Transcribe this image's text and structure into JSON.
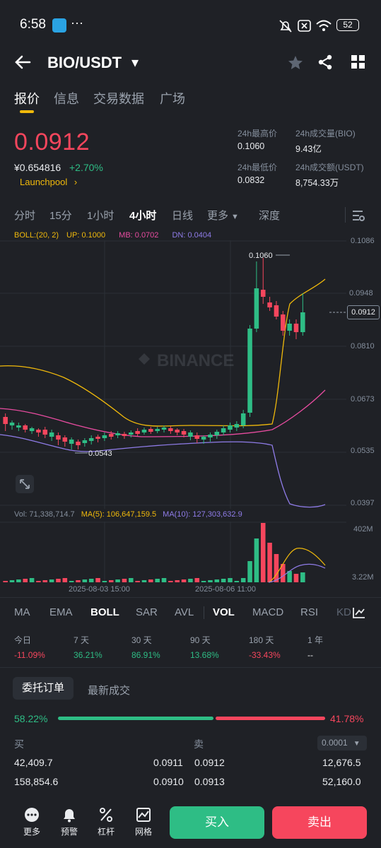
{
  "status_bar": {
    "time": "6:58",
    "dots": "···",
    "battery": "52"
  },
  "header": {
    "pair": "BIO/USDT",
    "caret": "▾"
  },
  "tabs": [
    "报价",
    "信息",
    "交易数据",
    "广场"
  ],
  "price": {
    "last": "0.0912",
    "cny": "¥0.654816",
    "change": "+2.70%",
    "launchpool": "Launchpool",
    "stats": {
      "high_label": "24h最高价",
      "high": "0.1060",
      "low_label": "24h最低价",
      "low": "0.0832",
      "vol_bio_label": "24h成交量(BIO)",
      "vol_bio": "9.43亿",
      "vol_usdt_label": "24h成交额(USDT)",
      "vol_usdt": "8,754.33万"
    }
  },
  "intervals": [
    "分时",
    "15分",
    "1小时",
    "4小时",
    "日线",
    "更多",
    "深度"
  ],
  "chart": {
    "boll": "BOLL:(20, 2)",
    "up": "UP: 0.1000",
    "mb": "MB: 0.0702",
    "dn": "DN: 0.0404",
    "watermark": "BINANCE",
    "high_mark": "0.1060",
    "low_mark": "0.0543",
    "current": "0.0912",
    "y_ticks": [
      "0.1086",
      "0.0948",
      "0.0810",
      "0.0673",
      "0.0535",
      "0.0397"
    ],
    "vol": "Vol: 71,338,714.7",
    "ma5": "MA(5): 106,647,159.5",
    "ma10": "MA(10): 127,303,632.9",
    "vol_ticks": [
      "402M",
      "3.22M"
    ],
    "dates": [
      "2025-08-03 15:00",
      "2025-08-06 11:00"
    ],
    "colors": {
      "up": "#2ebd85",
      "down": "#f6465d",
      "boll_up": "#f0b90b",
      "boll_mb": "#e84ca0",
      "boll_dn": "#8f7ce8"
    }
  },
  "indicators": [
    "MA",
    "EMA",
    "BOLL",
    "SAR",
    "AVL",
    "VOL",
    "MACD",
    "RSI",
    "KD"
  ],
  "performance": {
    "labels": [
      "今日",
      "7 天",
      "30 天",
      "90 天",
      "180 天",
      "1 年"
    ],
    "values": [
      "-11.09%",
      "36.21%",
      "86.91%",
      "13.68%",
      "-33.43%",
      "--"
    ]
  },
  "orderbook": {
    "tab_orders": "委托订单",
    "tab_trades": "最新成交",
    "buy_pct": "58.22%",
    "sell_pct": "41.78%",
    "buy_pct_value": 58.22,
    "buy_label": "买",
    "sell_label": "卖",
    "precision": "0.0001",
    "rows": [
      {
        "bid_qty": "42,409.7",
        "bid": "0.0911",
        "ask": "0.0912",
        "ask_qty": "12,676.5"
      },
      {
        "bid_qty": "158,854.6",
        "bid": "0.0910",
        "ask": "0.0913",
        "ask_qty": "52,160.0"
      }
    ]
  },
  "bottom_nav": {
    "more": "更多",
    "alert": "预警",
    "margin": "杠杆",
    "grid": "网格",
    "buy": "买入",
    "sell": "卖出"
  }
}
